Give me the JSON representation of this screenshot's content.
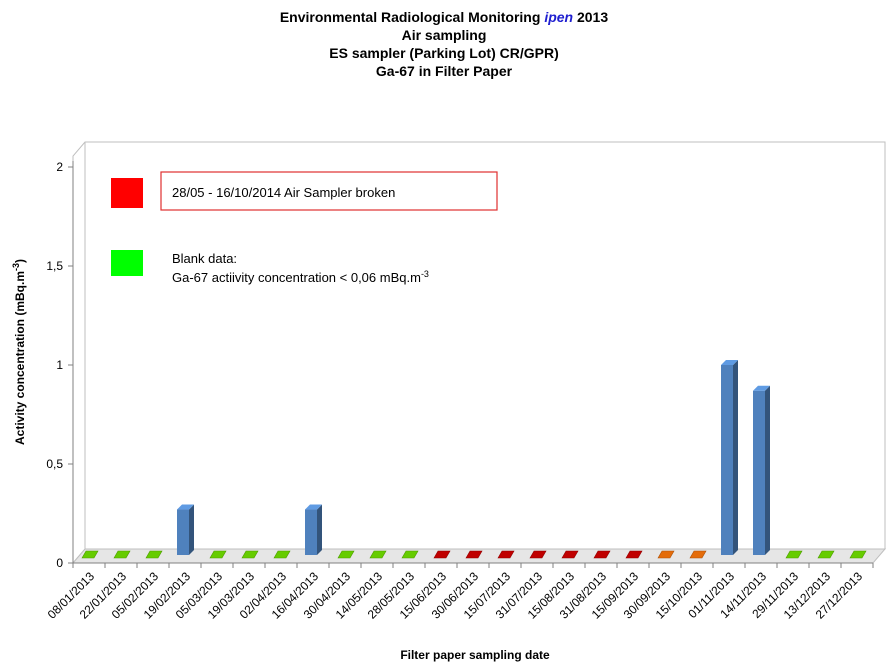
{
  "title": {
    "line1_prefix": "Environmental Radiological Monitoring ",
    "line1_ipen": "ipen",
    "line1_suffix": " 2013",
    "line2": "Air sampling",
    "line3": "ES sampler (Parking Lot) CR/GPR)",
    "line4": "Ga-67 in Filter Paper"
  },
  "legend": {
    "broken_label": "28/05 - 16/10/2014  Air Sampler broken",
    "blank_label_line1": "Blank data:",
    "blank_label_line2": " Ga-67 actiivity concentration  < 0,06 mBq.m",
    "blank_label_sup": "-3",
    "broken_color": "#ff0000",
    "blank_color": "#00ff00"
  },
  "chart_data": {
    "type": "bar",
    "title": "Environmental Radiological Monitoring ipen 2013 / Air sampling / ES sampler (Parking Lot) CR/GPR) / Ga-67 in Filter Paper",
    "xlabel": "Filter paper sampling date",
    "ylabel_main": "Activity concentration  (mBq.m",
    "ylabel_sup": "-3",
    "ylabel_end": ")",
    "ylim": [
      0,
      2
    ],
    "yticks": [
      "0",
      "0,5",
      "1",
      "1,5",
      "2"
    ],
    "ytick_values": [
      0,
      0.5,
      1,
      1.5,
      2
    ],
    "categories": [
      "08/01/2013",
      "22/01/2013",
      "05/02/2013",
      "19/02/2013",
      "05/03/2013",
      "19/03/2013",
      "02/04/2013",
      "16/04/2013",
      "30/04/2013",
      "14/05/2013",
      "28/05/2013",
      "15/06/2013",
      "30/06/2013",
      "15/07/2013",
      "31/07/2013",
      "15/08/2013",
      "31/08/2013",
      "15/09/2013",
      "30/09/2013",
      "15/10/2013",
      "01/11/2013",
      "14/11/2013",
      "29/11/2013",
      "13/12/2013",
      "27/12/2013"
    ],
    "values": [
      null,
      null,
      null,
      0.27,
      null,
      null,
      null,
      0.27,
      null,
      null,
      null,
      null,
      null,
      null,
      null,
      null,
      null,
      null,
      null,
      null,
      1.0,
      0.87,
      null,
      null,
      null
    ],
    "status": [
      "blank",
      "blank",
      "blank",
      "value",
      "blank",
      "blank",
      "blank",
      "value",
      "blank",
      "blank",
      "blank",
      "broken",
      "broken",
      "broken",
      "broken",
      "broken",
      "broken",
      "broken",
      "broken-orange",
      "broken-orange",
      "value",
      "value",
      "blank",
      "blank",
      "blank"
    ],
    "status_colors": {
      "value": "#4f81bd",
      "blank": "#66cc00",
      "broken": "#c00000",
      "broken-orange": "#e46c0a"
    },
    "grid": false,
    "legend_position": "top-left"
  }
}
